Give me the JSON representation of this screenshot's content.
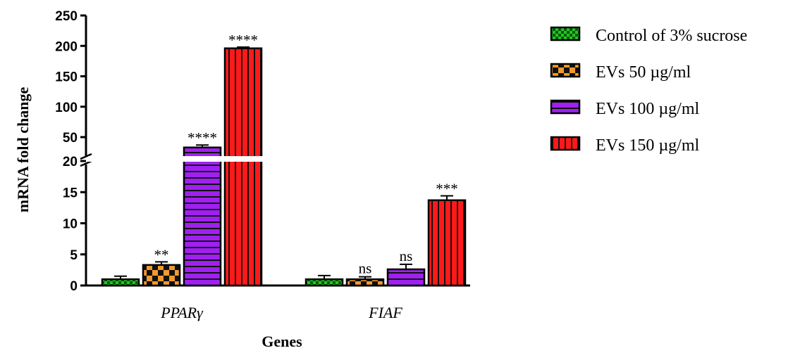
{
  "chart_data": {
    "type": "bar",
    "xlabel": "Genes",
    "ylabel": "mRNA fold change",
    "categories": [
      "PPARγ",
      "FIAF"
    ],
    "y_axis_break": [
      20,
      30
    ],
    "lower_ylim": [
      0,
      20
    ],
    "upper_ylim": [
      30,
      250
    ],
    "lower_ticks": [
      "0",
      "5",
      "10",
      "15",
      "20"
    ],
    "upper_ticks": [
      "50",
      "100",
      "150",
      "200",
      "250"
    ],
    "series": [
      {
        "name": "Control of 3% sucrose",
        "values": [
          1.0,
          1.0
        ],
        "errors": [
          0.5,
          0.6
        ],
        "significance": [
          "",
          ""
        ],
        "color": "#22c722",
        "pattern": "checker-small"
      },
      {
        "name": "EVs 50 µg/ml",
        "values": [
          3.3,
          1.0
        ],
        "errors": [
          0.5,
          0.4
        ],
        "significance": [
          "**",
          "ns"
        ],
        "color": "#f39a2d",
        "pattern": "checker-large"
      },
      {
        "name": "EVs 100 µg/ml",
        "values": [
          33,
          2.6
        ],
        "errors": [
          4,
          0.8
        ],
        "significance": [
          "****",
          "ns"
        ],
        "color": "#a020f0",
        "pattern": "horizontal-lines"
      },
      {
        "name": "EVs 150 µg/ml",
        "values": [
          196,
          13.7
        ],
        "errors": [
          2,
          0.7
        ],
        "significance": [
          "****",
          "***"
        ],
        "color": "#ff1a1a",
        "pattern": "vertical-lines"
      }
    ],
    "legend_position": "right"
  }
}
